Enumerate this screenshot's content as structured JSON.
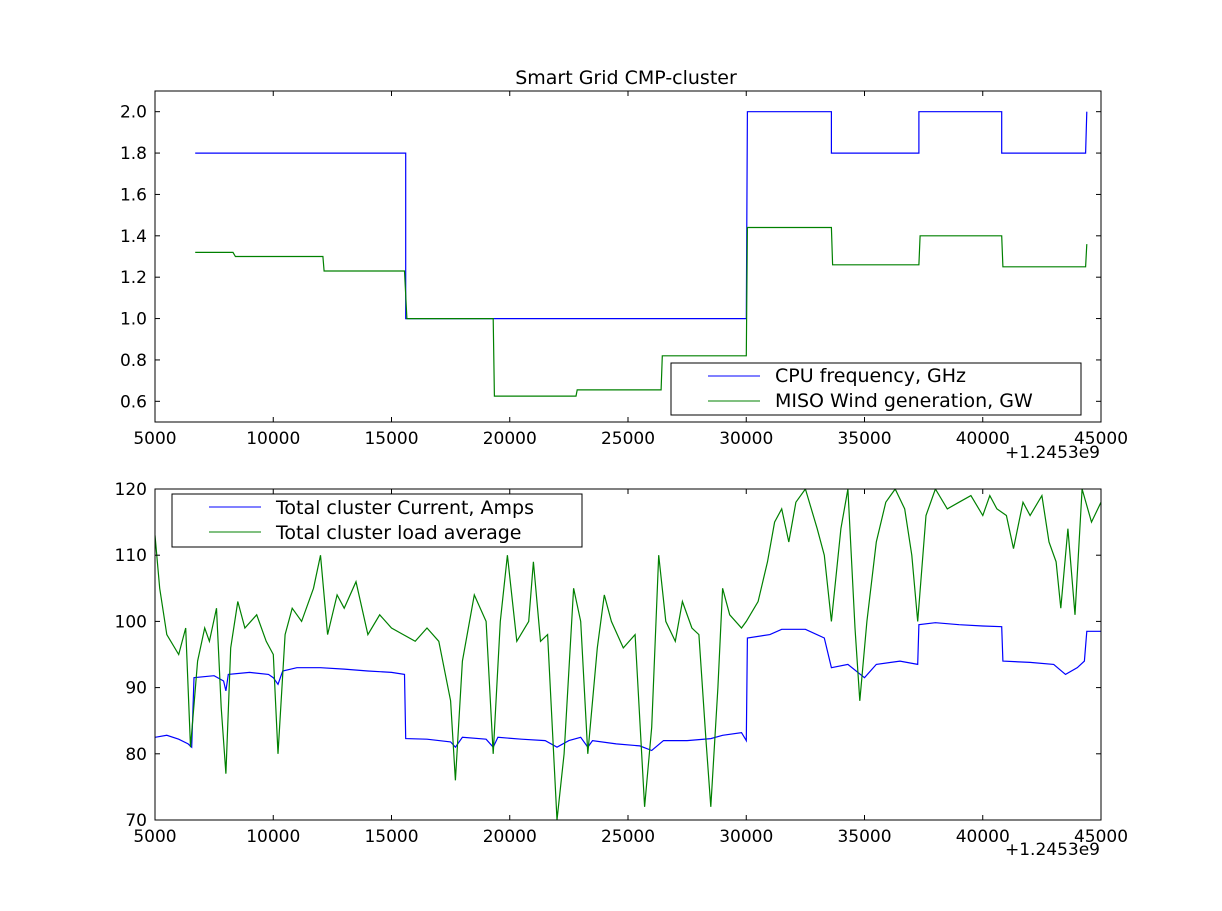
{
  "chart_data": [
    {
      "type": "line",
      "title": "Smart Grid CMP-cluster",
      "xlabel": "",
      "ylabel": "",
      "xlim": [
        5000,
        45000
      ],
      "ylim": [
        0.5,
        2.1
      ],
      "xticks": [
        "5000",
        "10000",
        "15000",
        "20000",
        "25000",
        "30000",
        "35000",
        "40000",
        "45000"
      ],
      "yticks": [
        "0.6",
        "0.8",
        "1.0",
        "1.2",
        "1.4",
        "1.6",
        "1.8",
        "2.0"
      ],
      "x_offset_label": "+1.2453e9",
      "grid": false,
      "legend_position": "lower-right",
      "series": [
        {
          "name": "CPU frequency, GHz",
          "color": "#0000ff",
          "points": [
            [
              6700,
              1.8
            ],
            [
              15600,
              1.8
            ],
            [
              15600,
              1.0
            ],
            [
              30000,
              1.0
            ],
            [
              30050,
              2.0
            ],
            [
              33600,
              2.0
            ],
            [
              33600,
              1.8
            ],
            [
              37300,
              1.8
            ],
            [
              37300,
              2.0
            ],
            [
              40800,
              2.0
            ],
            [
              40800,
              1.8
            ],
            [
              44350,
              1.8
            ],
            [
              44400,
              2.0
            ]
          ]
        },
        {
          "name": "MISO Wind generation, GW",
          "color": "#008000",
          "points": [
            [
              6700,
              1.32
            ],
            [
              8300,
              1.32
            ],
            [
              8400,
              1.3
            ],
            [
              12100,
              1.3
            ],
            [
              12150,
              1.23
            ],
            [
              15550,
              1.23
            ],
            [
              15650,
              1.0
            ],
            [
              19300,
              1.0
            ],
            [
              19350,
              0.625
            ],
            [
              22800,
              0.625
            ],
            [
              22850,
              0.655
            ],
            [
              26400,
              0.655
            ],
            [
              26450,
              0.82
            ],
            [
              30000,
              0.82
            ],
            [
              30050,
              1.44
            ],
            [
              33600,
              1.44
            ],
            [
              33650,
              1.26
            ],
            [
              37300,
              1.26
            ],
            [
              37350,
              1.4
            ],
            [
              40800,
              1.4
            ],
            [
              40850,
              1.25
            ],
            [
              44350,
              1.25
            ],
            [
              44400,
              1.36
            ]
          ]
        }
      ]
    },
    {
      "type": "line",
      "title": "",
      "xlabel": "",
      "ylabel": "",
      "xlim": [
        5000,
        45000
      ],
      "ylim": [
        70,
        120
      ],
      "xticks": [
        "5000",
        "10000",
        "15000",
        "20000",
        "25000",
        "30000",
        "35000",
        "40000",
        "45000"
      ],
      "yticks": [
        "70",
        "80",
        "90",
        "100",
        "110",
        "120"
      ],
      "x_offset_label": "+1.2453e9",
      "grid": false,
      "legend_position": "upper-left",
      "series": [
        {
          "name": "Total cluster Current, Amps",
          "color": "#0000ff",
          "points": [
            [
              5000,
              82.5
            ],
            [
              5500,
              82.8
            ],
            [
              6000,
              82.2
            ],
            [
              6400,
              81.5
            ],
            [
              6550,
              81.0
            ],
            [
              6650,
              91.5
            ],
            [
              7500,
              91.8
            ],
            [
              7900,
              91.0
            ],
            [
              8000,
              89.5
            ],
            [
              8100,
              92.0
            ],
            [
              9000,
              92.3
            ],
            [
              9800,
              92.0
            ],
            [
              10000,
              91.5
            ],
            [
              10200,
              90.5
            ],
            [
              10400,
              92.5
            ],
            [
              11000,
              93.0
            ],
            [
              12000,
              93.0
            ],
            [
              13000,
              92.8
            ],
            [
              14000,
              92.5
            ],
            [
              15000,
              92.3
            ],
            [
              15550,
              92.0
            ],
            [
              15600,
              82.3
            ],
            [
              16500,
              82.2
            ],
            [
              17500,
              81.8
            ],
            [
              17700,
              81.0
            ],
            [
              18000,
              82.5
            ],
            [
              19000,
              82.2
            ],
            [
              19300,
              81.0
            ],
            [
              19500,
              82.5
            ],
            [
              20500,
              82.2
            ],
            [
              21500,
              82.0
            ],
            [
              22000,
              81.0
            ],
            [
              22500,
              82.0
            ],
            [
              23000,
              82.5
            ],
            [
              23300,
              81.0
            ],
            [
              23500,
              82.0
            ],
            [
              24500,
              81.5
            ],
            [
              25500,
              81.2
            ],
            [
              26000,
              80.5
            ],
            [
              26500,
              82.0
            ],
            [
              27500,
              82.0
            ],
            [
              28500,
              82.3
            ],
            [
              29000,
              82.8
            ],
            [
              29800,
              83.2
            ],
            [
              30000,
              82.0
            ],
            [
              30050,
              97.5
            ],
            [
              31000,
              98.0
            ],
            [
              31500,
              98.8
            ],
            [
              32500,
              98.8
            ],
            [
              33300,
              97.5
            ],
            [
              33600,
              93.0
            ],
            [
              34300,
              93.5
            ],
            [
              35000,
              91.5
            ],
            [
              35500,
              93.5
            ],
            [
              36500,
              94.0
            ],
            [
              37250,
              93.5
            ],
            [
              37300,
              99.5
            ],
            [
              38000,
              99.8
            ],
            [
              39000,
              99.5
            ],
            [
              40000,
              99.3
            ],
            [
              40800,
              99.2
            ],
            [
              40850,
              94.0
            ],
            [
              42000,
              93.8
            ],
            [
              43000,
              93.5
            ],
            [
              43500,
              92.0
            ],
            [
              44000,
              93.0
            ],
            [
              44300,
              94.0
            ],
            [
              44400,
              98.5
            ],
            [
              45000,
              98.5
            ]
          ]
        },
        {
          "name": "Total cluster load average",
          "color": "#008000",
          "points": [
            [
              5000,
              113
            ],
            [
              5200,
              105
            ],
            [
              5500,
              98
            ],
            [
              6000,
              95
            ],
            [
              6300,
              99
            ],
            [
              6500,
              81
            ],
            [
              6800,
              94
            ],
            [
              7100,
              99
            ],
            [
              7300,
              97
            ],
            [
              7600,
              102
            ],
            [
              7800,
              87
            ],
            [
              8000,
              77
            ],
            [
              8200,
              96
            ],
            [
              8500,
              103
            ],
            [
              8800,
              99
            ],
            [
              9300,
              101
            ],
            [
              9700,
              97
            ],
            [
              10000,
              95
            ],
            [
              10200,
              80
            ],
            [
              10500,
              98
            ],
            [
              10800,
              102
            ],
            [
              11200,
              100
            ],
            [
              11700,
              105
            ],
            [
              12000,
              110
            ],
            [
              12300,
              98
            ],
            [
              12700,
              104
            ],
            [
              13000,
              102
            ],
            [
              13500,
              106
            ],
            [
              14000,
              98
            ],
            [
              14500,
              101
            ],
            [
              15000,
              99
            ],
            [
              15500,
              98
            ],
            [
              16000,
              97
            ],
            [
              16500,
              99
            ],
            [
              17000,
              97
            ],
            [
              17500,
              88
            ],
            [
              17700,
              76
            ],
            [
              18000,
              94
            ],
            [
              18500,
              104
            ],
            [
              19000,
              100
            ],
            [
              19300,
              80
            ],
            [
              19600,
              100
            ],
            [
              19900,
              110
            ],
            [
              20300,
              97
            ],
            [
              20800,
              100
            ],
            [
              21000,
              109
            ],
            [
              21300,
              97
            ],
            [
              21600,
              98
            ],
            [
              22000,
              70
            ],
            [
              22300,
              80
            ],
            [
              22700,
              105
            ],
            [
              23000,
              100
            ],
            [
              23300,
              80
            ],
            [
              23700,
              96
            ],
            [
              24000,
              104
            ],
            [
              24300,
              100
            ],
            [
              24800,
              96
            ],
            [
              25300,
              98
            ],
            [
              25700,
              72
            ],
            [
              26000,
              84
            ],
            [
              26300,
              110
            ],
            [
              26600,
              100
            ],
            [
              27000,
              97
            ],
            [
              27300,
              103
            ],
            [
              27700,
              99
            ],
            [
              28000,
              98
            ],
            [
              28300,
              82
            ],
            [
              28500,
              72
            ],
            [
              28800,
              90
            ],
            [
              29000,
              105
            ],
            [
              29300,
              101
            ],
            [
              29800,
              99
            ],
            [
              30000,
              100
            ],
            [
              30500,
              103
            ],
            [
              30900,
              109
            ],
            [
              31200,
              115
            ],
            [
              31500,
              117
            ],
            [
              31800,
              112
            ],
            [
              32100,
              118
            ],
            [
              32500,
              120
            ],
            [
              33000,
              114
            ],
            [
              33300,
              110
            ],
            [
              33600,
              100
            ],
            [
              34000,
              114
            ],
            [
              34300,
              120
            ],
            [
              34600,
              99
            ],
            [
              34800,
              88
            ],
            [
              35100,
              100
            ],
            [
              35500,
              112
            ],
            [
              35900,
              118
            ],
            [
              36300,
              120
            ],
            [
              36700,
              117
            ],
            [
              37000,
              110
            ],
            [
              37250,
              100
            ],
            [
              37600,
              116
            ],
            [
              38000,
              120
            ],
            [
              38500,
              117
            ],
            [
              39000,
              118
            ],
            [
              39500,
              119
            ],
            [
              40000,
              116
            ],
            [
              40300,
              119
            ],
            [
              40600,
              117
            ],
            [
              41000,
              116
            ],
            [
              41300,
              111
            ],
            [
              41700,
              118
            ],
            [
              42000,
              116
            ],
            [
              42500,
              119
            ],
            [
              42800,
              112
            ],
            [
              43100,
              109
            ],
            [
              43300,
              102
            ],
            [
              43600,
              114
            ],
            [
              43900,
              101
            ],
            [
              44200,
              120
            ],
            [
              44600,
              115
            ],
            [
              45000,
              118
            ]
          ]
        }
      ]
    }
  ]
}
